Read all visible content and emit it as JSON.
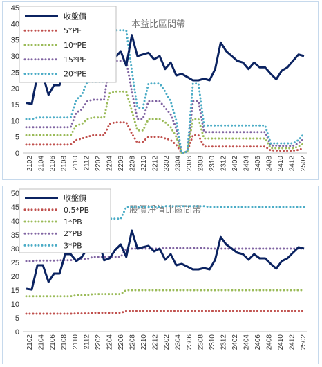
{
  "x_labels": [
    "2102",
    "2104",
    "2106",
    "2108",
    "2110",
    "2112",
    "2202",
    "2204",
    "2206",
    "2208",
    "2210",
    "2212",
    "2302",
    "2304",
    "2306",
    "2308",
    "2310",
    "2312",
    "2402",
    "2404",
    "2406",
    "2408",
    "2410",
    "2412",
    "2502"
  ],
  "chart_data": [
    {
      "type": "line",
      "title": "本益比區間帶",
      "ylim": [
        0,
        45
      ],
      "yticks": [
        0,
        5,
        10,
        15,
        20,
        25,
        30,
        35,
        40,
        45
      ],
      "legend": "top-left",
      "series": [
        {
          "name": "收盤價",
          "style": "solid",
          "color": "#0b2361",
          "values": [
            15.5,
            15.2,
            24,
            24,
            18,
            21,
            21,
            28,
            28,
            25.5,
            27,
            30,
            33.5,
            33.5,
            25.8,
            26.5,
            29.5,
            31.5,
            27,
            36.5,
            30,
            30.5,
            31,
            29,
            30,
            26,
            28,
            24,
            24.5,
            23.5,
            22.5,
            22.5,
            23,
            22.5,
            26,
            34.2,
            31.5,
            30,
            28.5,
            28,
            26,
            28,
            26.5,
            26.5,
            24.5,
            22.8,
            25.5,
            26.5,
            28.5,
            30.5,
            30
          ]
        },
        {
          "name": "5*PE",
          "style": "dotted",
          "color": "#c0504d",
          "values": [
            2.6,
            2.6,
            2.6,
            2.6,
            2.6,
            2.6,
            2.6,
            2.6,
            2.6,
            4,
            4.5,
            5,
            5.5,
            5.5,
            5.5,
            9,
            9.5,
            9.5,
            9.5,
            6,
            3.2,
            3.5,
            5,
            5,
            5,
            4.5,
            4,
            2.5,
            0,
            0.5,
            5.5,
            5.5,
            2,
            2,
            2,
            2,
            2,
            2,
            2,
            2,
            2,
            2,
            2,
            2,
            0.8,
            0.8,
            0.7,
            0.7,
            0.7,
            1,
            1.5
          ]
        },
        {
          "name": "10*PE",
          "style": "dotted",
          "color": "#9bbb59",
          "values": [
            5.5,
            5.5,
            5.5,
            5.5,
            5.5,
            5.5,
            5.5,
            5.5,
            5.5,
            8.5,
            9,
            10.5,
            11,
            11,
            11,
            18.5,
            19,
            19,
            19,
            13,
            7,
            7,
            10.5,
            10.5,
            10.5,
            9.5,
            8,
            5,
            0,
            0.5,
            10.5,
            10.5,
            4.5,
            4.5,
            4.5,
            4.5,
            4.5,
            4.5,
            4.5,
            4.5,
            4.5,
            4.5,
            4.5,
            4.5,
            1.5,
            1.5,
            1.5,
            1.5,
            1.5,
            2,
            3
          ]
        },
        {
          "name": "15*PE",
          "style": "dotted",
          "color": "#8064a2",
          "values": [
            8,
            8,
            8,
            8,
            8,
            8,
            8,
            8,
            8,
            12.5,
            13.5,
            16,
            16.5,
            16.5,
            16.5,
            28,
            28.5,
            28.5,
            28.5,
            19,
            10.5,
            10.5,
            16,
            16,
            16,
            14,
            12,
            7.5,
            0,
            0.5,
            16,
            16,
            6.5,
            6.5,
            6.5,
            6.5,
            6.5,
            6.5,
            6.5,
            6.5,
            6.5,
            6.5,
            6.5,
            6.5,
            2.3,
            2.3,
            2.2,
            2.2,
            2.2,
            3,
            4.5
          ]
        },
        {
          "name": "20*PE",
          "style": "dotted",
          "color": "#4bacc6",
          "values": [
            10.5,
            10.5,
            11,
            11,
            11,
            11,
            11,
            11,
            11,
            16.5,
            18,
            22,
            22,
            22,
            22,
            37.5,
            38,
            38,
            38,
            25.5,
            14,
            14,
            21.5,
            21.5,
            21.5,
            19,
            16,
            10,
            0,
            0.5,
            21.5,
            21.5,
            8.5,
            8.5,
            8.5,
            8.5,
            8.5,
            8.5,
            8.5,
            8.5,
            8.5,
            8.5,
            8.5,
            8.5,
            3,
            3,
            3,
            3,
            3,
            4,
            6
          ]
        }
      ]
    },
    {
      "type": "line",
      "title": "股價淨值比區間帶",
      "ylim": [
        0,
        50
      ],
      "yticks": [
        0,
        5,
        10,
        15,
        20,
        25,
        30,
        35,
        40,
        45,
        50
      ],
      "legend": "top-left",
      "series": [
        {
          "name": "收盤價",
          "style": "solid",
          "color": "#0b2361",
          "values": [
            15.5,
            15.2,
            24,
            24,
            18,
            21,
            21,
            28,
            28,
            25.5,
            27,
            30,
            33.5,
            33.5,
            25.8,
            26.5,
            29.5,
            31.5,
            27,
            36.5,
            30,
            30.5,
            31,
            29,
            30,
            26,
            28,
            24,
            24.5,
            23.5,
            22.5,
            22.5,
            23,
            22.5,
            26,
            34.2,
            31.5,
            30,
            28.5,
            28,
            26,
            28,
            26.5,
            26.5,
            24.5,
            22.8,
            25.5,
            26.5,
            28.5,
            30.5,
            30
          ]
        },
        {
          "name": "0.5*PB",
          "style": "dotted",
          "color": "#c0504d",
          "values": [
            6.5,
            6.5,
            6.5,
            6.5,
            6.5,
            6.5,
            6.5,
            6.5,
            6.5,
            6.6,
            6.6,
            6.6,
            6.8,
            6.8,
            6.8,
            6.8,
            6.8,
            6.8,
            7.5,
            7.5,
            7.5,
            7.5,
            7.5,
            7.5,
            7.5,
            7.5,
            7.5,
            7.5,
            7.5,
            7.5,
            7.5,
            7.5,
            7.5,
            7.5,
            7.5,
            7.5,
            7.5,
            7.5,
            7.5,
            7.5,
            7.5,
            7.5,
            7.5,
            7.5,
            7.5,
            7.5,
            7.5,
            7.5,
            7.5,
            7.5,
            7.5
          ]
        },
        {
          "name": "1*PB",
          "style": "dotted",
          "color": "#9bbb59",
          "values": [
            12.8,
            12.8,
            12.8,
            12.8,
            12.8,
            12.8,
            12.8,
            12.8,
            12.8,
            13.2,
            13.2,
            13.2,
            13.6,
            13.6,
            13.6,
            13.6,
            13.6,
            13.6,
            15,
            15,
            15,
            15,
            15,
            15,
            15,
            15,
            15,
            15,
            15,
            15,
            15,
            15,
            15,
            15,
            15,
            15,
            15,
            15,
            15,
            15,
            15,
            15,
            15,
            15,
            15,
            15,
            15,
            15,
            15,
            15,
            15
          ]
        },
        {
          "name": "2*PB",
          "style": "dotted",
          "color": "#8064a2",
          "values": [
            25.5,
            25.5,
            25.7,
            25.7,
            25.7,
            25.7,
            25.8,
            25.8,
            25.8,
            26.3,
            26.3,
            26.3,
            27,
            27,
            27,
            27,
            27,
            27,
            30,
            30,
            30,
            30,
            30,
            30,
            30,
            30.2,
            30.2,
            30.2,
            30.2,
            30.2,
            30.2,
            30.2,
            30.2,
            30,
            30,
            30,
            30,
            30,
            30,
            30,
            30,
            30,
            30,
            30,
            30,
            30,
            30,
            30,
            30,
            30,
            30
          ]
        },
        {
          "name": "3*PB",
          "style": "dotted",
          "color": "#4bacc6",
          "values": [
            38.3,
            38.3,
            38.5,
            38.5,
            38.5,
            38.5,
            38.7,
            38.7,
            38.7,
            39.5,
            39.5,
            39.5,
            40.8,
            40.8,
            40.8,
            40.8,
            40.8,
            40.8,
            45,
            45,
            45,
            45,
            45,
            45,
            45,
            45.3,
            45.3,
            45.3,
            45.3,
            45.3,
            45.3,
            45.3,
            45.3,
            45,
            45,
            45,
            45,
            45,
            45,
            45,
            45,
            45,
            45,
            45,
            45,
            45,
            45,
            45,
            45,
            45,
            45
          ]
        }
      ]
    }
  ]
}
